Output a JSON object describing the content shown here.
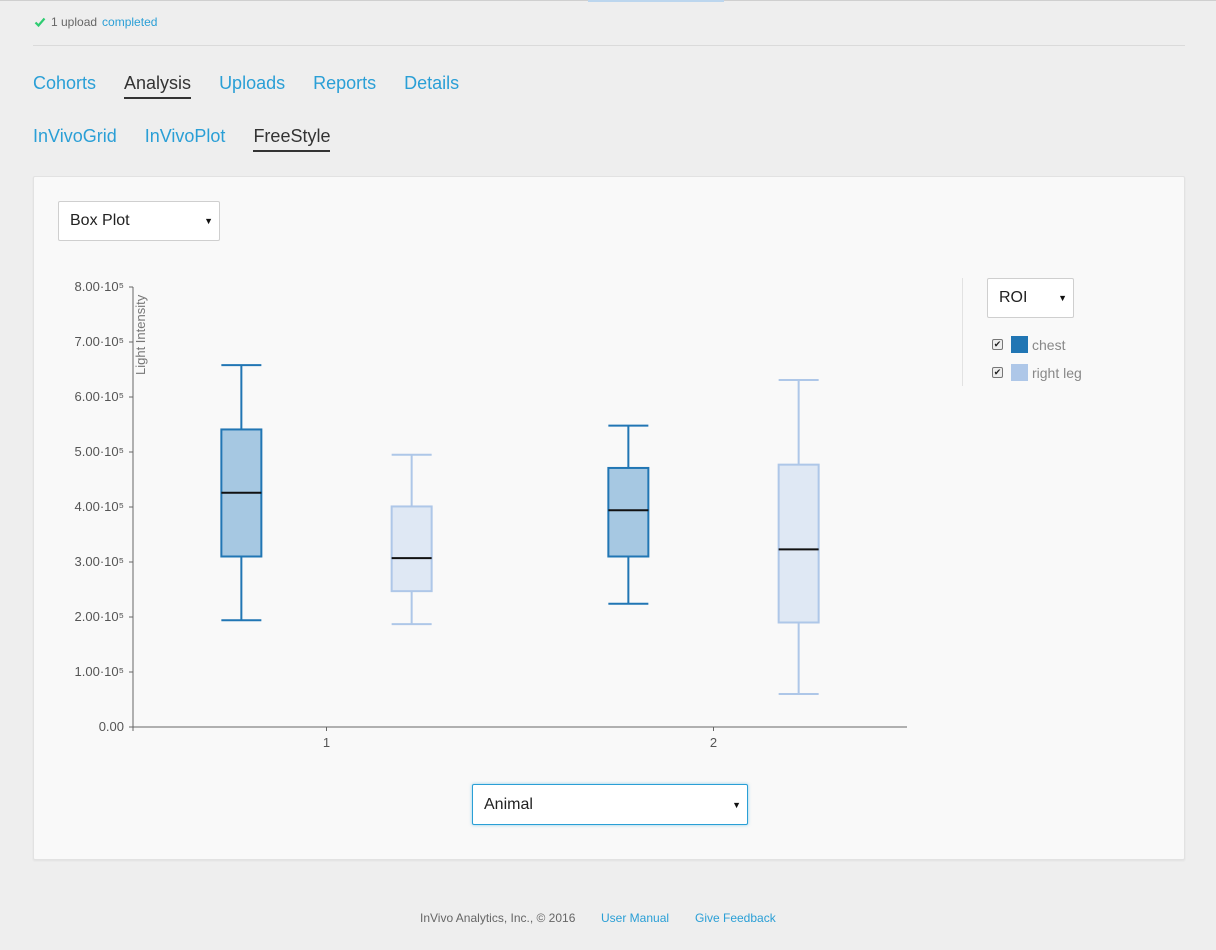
{
  "status": {
    "prefix": "1 upload",
    "link": "completed",
    "icon": "check-icon",
    "icon_color": "#2ecc71"
  },
  "main_tabs": [
    {
      "label": "Cohorts",
      "active": false
    },
    {
      "label": "Analysis",
      "active": true
    },
    {
      "label": "Uploads",
      "active": false
    },
    {
      "label": "Reports",
      "active": false
    },
    {
      "label": "Details",
      "active": false
    }
  ],
  "sub_tabs": [
    {
      "label": "InVivoGrid",
      "active": false
    },
    {
      "label": "InVivoPlot",
      "active": false
    },
    {
      "label": "FreeStyle",
      "active": true
    }
  ],
  "plot_type_select": {
    "value": "Box Plot"
  },
  "group_select": {
    "value": "ROI"
  },
  "xaxis_select": {
    "value": "Animal"
  },
  "legend": [
    {
      "label": "chest",
      "color": "#2176b4",
      "checked": true
    },
    {
      "label": "right leg",
      "color": "#aec7e8",
      "checked": true
    }
  ],
  "chart_data": {
    "type": "box",
    "ylabel": "Light Intensity",
    "xlabel": "",
    "ylim": [
      0,
      800000
    ],
    "y_ticks": [
      {
        "value": 0,
        "label": "0.00"
      },
      {
        "value": 100000,
        "label": "1.00·10⁵"
      },
      {
        "value": 200000,
        "label": "2.00·10⁵"
      },
      {
        "value": 300000,
        "label": "3.00·10⁵"
      },
      {
        "value": 400000,
        "label": "4.00·10⁵"
      },
      {
        "value": 500000,
        "label": "5.00·10⁵"
      },
      {
        "value": 600000,
        "label": "6.00·10⁵"
      },
      {
        "value": 700000,
        "label": "7.00·10⁵"
      },
      {
        "value": 800000,
        "label": "8.00·10⁵"
      }
    ],
    "categories": [
      "1",
      "2"
    ],
    "series": [
      {
        "name": "chest",
        "color": "#2176b4",
        "fill": "#a6c8e2",
        "boxes": [
          {
            "min": 194000,
            "q1": 310000,
            "median": 426000,
            "q3": 541000,
            "max": 658000
          },
          {
            "min": 224000,
            "q1": 310000,
            "median": 394000,
            "q3": 471000,
            "max": 548000
          }
        ]
      },
      {
        "name": "right leg",
        "color": "#aec7e8",
        "fill": "#dfe8f4",
        "boxes": [
          {
            "min": 187000,
            "q1": 247000,
            "median": 307000,
            "q3": 401000,
            "max": 495000
          },
          {
            "min": 60000,
            "q1": 190000,
            "median": 323000,
            "q3": 477000,
            "max": 631000
          }
        ]
      }
    ]
  },
  "footer": {
    "copyright": "InVivo Analytics, Inc., © 2016",
    "manual": "User Manual",
    "feedback": "Give Feedback"
  }
}
